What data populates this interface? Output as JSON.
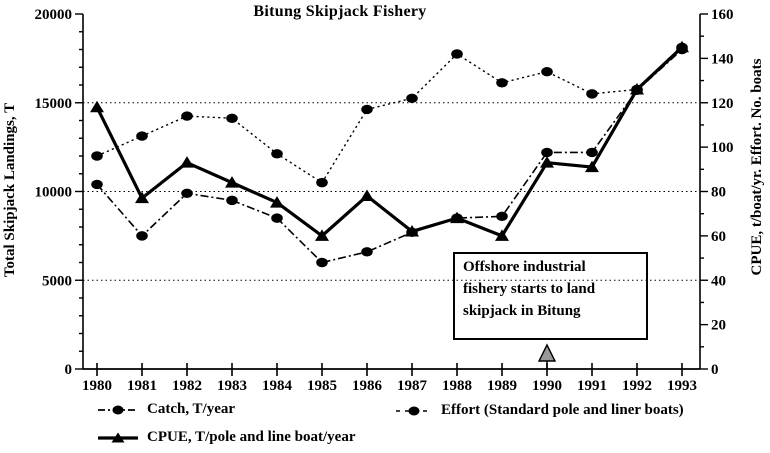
{
  "chart_data": {
    "type": "line",
    "title": "Bitung Skipjack Fishery",
    "categories": [
      "1980",
      "1981",
      "1982",
      "1983",
      "1984",
      "1985",
      "1986",
      "1987",
      "1988",
      "1989",
      "1990",
      "1991",
      "1992",
      "1993"
    ],
    "xlabel": "",
    "ylabel_left": "Total Skipjack Landings, T",
    "ylabel_right": "CPUE, t/boat/yr. Effort. No. boats",
    "ylim_left": [
      0,
      20000
    ],
    "ylim_right": [
      0,
      160
    ],
    "yticks_left": [
      0,
      5000,
      10000,
      15000,
      20000
    ],
    "yticks_right": [
      0,
      20,
      40,
      60,
      80,
      100,
      120,
      140,
      160
    ],
    "ytick_minor_step_left": 1000,
    "ytick_minor_step_right": 10,
    "gridline_values_left": [
      5000,
      10000,
      15000
    ],
    "grid_style": "dotted-horizontal",
    "legend_position": "bottom",
    "series": [
      {
        "name": "Catch, T/year",
        "axis": "left",
        "marker": "circle",
        "line_style": "dashdot",
        "line_width": 1.6,
        "values": [
          10400,
          7500,
          9900,
          9500,
          8500,
          6000,
          6600,
          7700,
          8500,
          8600,
          12200,
          12200,
          15700,
          18000
        ]
      },
      {
        "name": "Effort (Standard pole and liner boats)",
        "axis": "right",
        "marker": "circle",
        "line_style": "dotted",
        "line_width": 1.4,
        "values": [
          96,
          105,
          114,
          113,
          97,
          84,
          117,
          122,
          142,
          129,
          134,
          124,
          126,
          145
        ]
      },
      {
        "name": "CPUE, T/pole and line boat/year",
        "axis": "right",
        "marker": "triangle",
        "line_style": "solid",
        "line_width": 3.2,
        "values": [
          118,
          77,
          93,
          84,
          75,
          60,
          78,
          62,
          68,
          60,
          93,
          91,
          126,
          145
        ]
      }
    ],
    "annotation": {
      "lines": [
        "Offshore industrial",
        "fishery starts to land",
        "skipjack in Bitung"
      ],
      "arrow_year": "1990"
    }
  },
  "colors": {
    "ink": "#000000",
    "paper": "#ffffff",
    "arrow_fill": "#999999"
  }
}
